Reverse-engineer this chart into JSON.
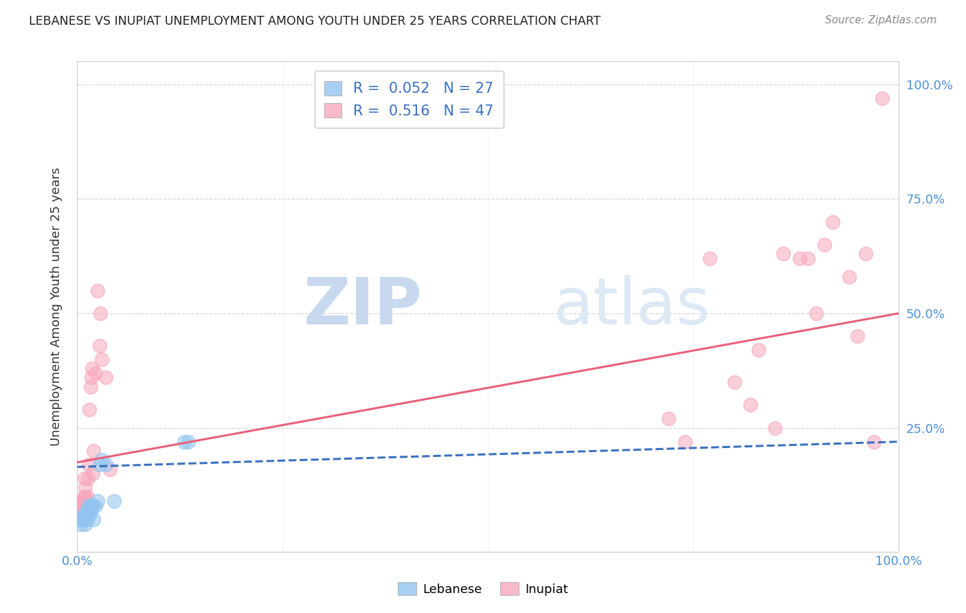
{
  "title": "LEBANESE VS INUPIAT UNEMPLOYMENT AMONG YOUTH UNDER 25 YEARS CORRELATION CHART",
  "source": "Source: ZipAtlas.com",
  "ylabel": "Unemployment Among Youth under 25 years",
  "xlim": [
    0.0,
    1.0
  ],
  "ylim": [
    -0.02,
    1.05
  ],
  "xticks": [
    0.0,
    1.0
  ],
  "xticklabels": [
    "0.0%",
    "100.0%"
  ],
  "yticks_right": [
    0.25,
    0.5,
    0.75,
    1.0
  ],
  "yticklabels_right": [
    "25.0%",
    "50.0%",
    "75.0%",
    "100.0%"
  ],
  "legend_R_leb": "R = 0.052",
  "legend_N_leb": "N = 27",
  "legend_R_inu": "R = 0.516",
  "legend_N_inu": "N = 47",
  "lebanese_color": "#92c5f0",
  "inupiat_color": "#f7a8bc",
  "leb_line_color": "#3a70c0",
  "inu_line_color": "#e8607a",
  "watermark_zip": "ZIP",
  "watermark_atlas": "atlas",
  "watermark_color": "#ddeaf8",
  "background": "#ffffff",
  "leb_scatter_x": [
    0.005,
    0.005,
    0.006,
    0.007,
    0.008,
    0.009,
    0.01,
    0.01,
    0.01,
    0.012,
    0.013,
    0.013,
    0.014,
    0.015,
    0.016,
    0.017,
    0.018,
    0.019,
    0.02,
    0.022,
    0.025,
    0.027,
    0.03,
    0.035,
    0.045,
    0.13,
    0.135
  ],
  "leb_scatter_y": [
    0.04,
    0.05,
    0.05,
    0.05,
    0.06,
    0.06,
    0.04,
    0.05,
    0.06,
    0.05,
    0.07,
    0.08,
    0.07,
    0.06,
    0.07,
    0.08,
    0.08,
    0.08,
    0.05,
    0.08,
    0.09,
    0.17,
    0.18,
    0.17,
    0.09,
    0.22,
    0.22
  ],
  "inu_scatter_x": [
    0.003,
    0.004,
    0.004,
    0.005,
    0.005,
    0.006,
    0.007,
    0.007,
    0.008,
    0.008,
    0.009,
    0.01,
    0.01,
    0.012,
    0.013,
    0.014,
    0.015,
    0.016,
    0.017,
    0.018,
    0.019,
    0.02,
    0.022,
    0.025,
    0.027,
    0.028,
    0.03,
    0.035,
    0.04,
    0.72,
    0.74,
    0.77,
    0.8,
    0.82,
    0.83,
    0.85,
    0.86,
    0.88,
    0.89,
    0.9,
    0.91,
    0.92,
    0.94,
    0.95,
    0.96,
    0.97,
    0.98
  ],
  "inu_scatter_y": [
    0.06,
    0.07,
    0.08,
    0.07,
    0.08,
    0.08,
    0.07,
    0.09,
    0.09,
    0.1,
    0.14,
    0.1,
    0.12,
    0.1,
    0.14,
    0.17,
    0.29,
    0.34,
    0.36,
    0.38,
    0.15,
    0.2,
    0.37,
    0.55,
    0.43,
    0.5,
    0.4,
    0.36,
    0.16,
    0.27,
    0.22,
    0.62,
    0.35,
    0.3,
    0.42,
    0.25,
    0.63,
    0.62,
    0.62,
    0.5,
    0.65,
    0.7,
    0.58,
    0.45,
    0.63,
    0.22,
    0.97
  ],
  "inu_line_start_x": 0.0,
  "inu_line_start_y": 0.175,
  "inu_line_end_x": 1.0,
  "inu_line_end_y": 0.5,
  "leb_line_start_x": 0.0,
  "leb_line_start_y": 0.165,
  "leb_line_end_x": 1.0,
  "leb_line_end_y": 0.22
}
